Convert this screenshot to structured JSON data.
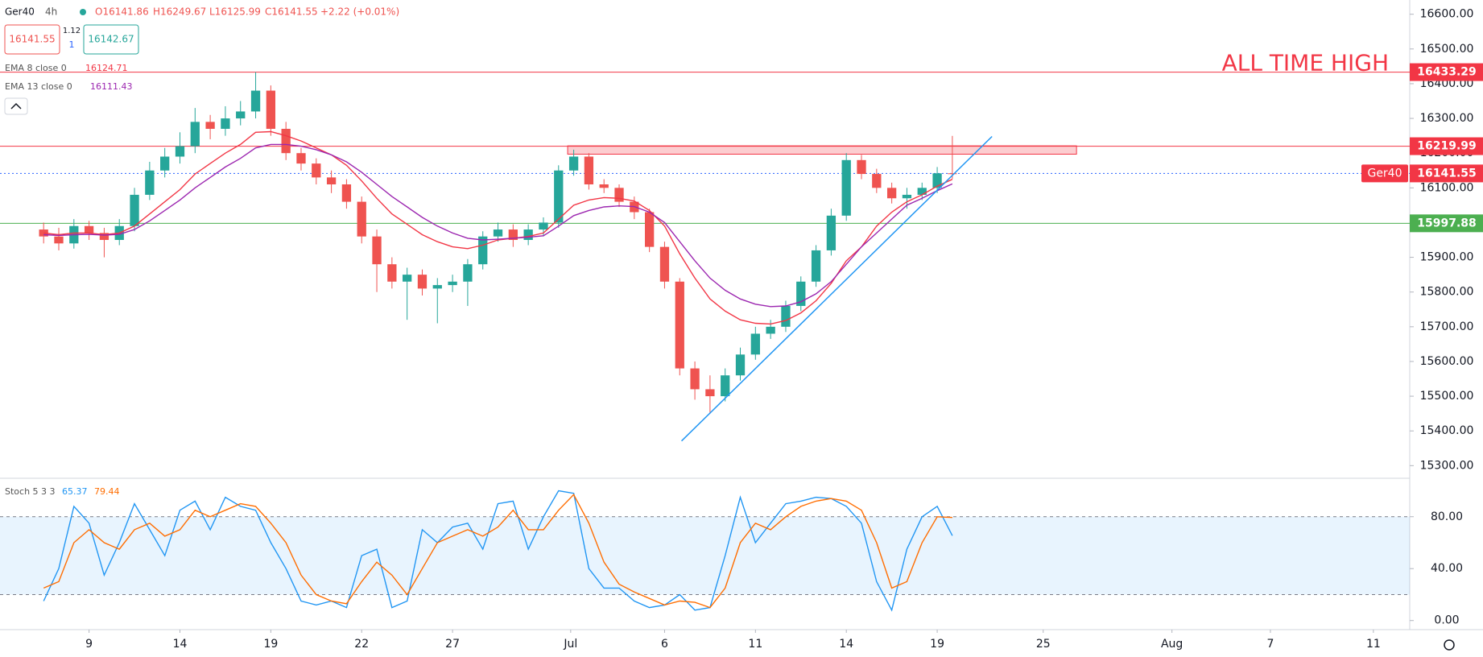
{
  "header": {
    "symbol": "Ger40",
    "interval": "4h",
    "open": "O16141.86",
    "high": "H16249.67",
    "low": "L16125.99",
    "close": "C16141.55",
    "change": "+2.22 (+0.01%)",
    "sell": "16141.55",
    "spread": "1.12",
    "qty": "1",
    "buy": "16142.67"
  },
  "chart_data": {
    "type": "candlestick",
    "x": [
      -0.5,
      0,
      0.5,
      1,
      1.5,
      2,
      2.5,
      3,
      3.5,
      4,
      4.5,
      5,
      5.5,
      6,
      6.5,
      7,
      7.5,
      8,
      8.5,
      9,
      9.5,
      10,
      10.5,
      11,
      11.5,
      12,
      12.5,
      13,
      13.5,
      14,
      14.5,
      15,
      15.5,
      16,
      16.5,
      17,
      17.5,
      18,
      18.5,
      19,
      19.5,
      20,
      20.5,
      21,
      21.5,
      22,
      22.5,
      23,
      23.5,
      24,
      24.5,
      25,
      25.5,
      26,
      26.5,
      27,
      27.5,
      28,
      28.5,
      29,
      29.5
    ],
    "open": [
      15980,
      15960,
      15940,
      15990,
      15970,
      15950,
      15990,
      16080,
      16150,
      16190,
      16220,
      16290,
      16270,
      16300,
      16320,
      16380,
      16270,
      16200,
      16170,
      16130,
      16110,
      16060,
      15960,
      15880,
      15830,
      15850,
      15810,
      15820,
      15830,
      15880,
      15960,
      15980,
      15950,
      15980,
      16000,
      16150,
      16190,
      16110,
      16100,
      16060,
      16030,
      15930,
      15830,
      15580,
      15520,
      15500,
      15560,
      15620,
      15680,
      15700,
      15760,
      15830,
      15920,
      16020,
      16180,
      16140,
      16100,
      16070,
      16080,
      16100,
      16141.86
    ],
    "high": [
      16000,
      15985,
      16010,
      16005,
      15985,
      16010,
      16100,
      16175,
      16215,
      16260,
      16330,
      16310,
      16335,
      16350,
      16433.29,
      16395,
      16290,
      16215,
      16185,
      16150,
      16125,
      16075,
      15980,
      15900,
      15870,
      15865,
      15840,
      15850,
      15895,
      15975,
      16000,
      15995,
      15995,
      16015,
      16165,
      16210,
      16200,
      16125,
      16110,
      16075,
      16040,
      15945,
      15840,
      15600,
      15560,
      15580,
      15640,
      15700,
      15720,
      15775,
      15845,
      15935,
      16040,
      16200,
      16195,
      16155,
      16115,
      16100,
      16115,
      16160,
      16249.67
    ],
    "low": [
      15940,
      15920,
      15925,
      15950,
      15900,
      15935,
      15975,
      16065,
      16130,
      16170,
      16200,
      16240,
      16250,
      16280,
      16300,
      16250,
      16180,
      16150,
      16110,
      16085,
      16040,
      15940,
      15800,
      15810,
      15720,
      15790,
      15710,
      15800,
      15760,
      15865,
      15945,
      15930,
      15935,
      15960,
      15985,
      16135,
      16095,
      16085,
      16045,
      16010,
      15915,
      15810,
      15560,
      15490,
      15450,
      15485,
      15545,
      15605,
      15665,
      15685,
      15745,
      15815,
      15905,
      16005,
      16125,
      16085,
      16055,
      16040,
      16065,
      16085,
      16125.99
    ],
    "close": [
      15960,
      15940,
      15990,
      15970,
      15950,
      15990,
      16080,
      16150,
      16190,
      16220,
      16290,
      16270,
      16300,
      16320,
      16380,
      16270,
      16200,
      16170,
      16130,
      16110,
      16060,
      15960,
      15880,
      15830,
      15850,
      15810,
      15820,
      15830,
      15880,
      15960,
      15980,
      15950,
      15980,
      16000,
      16150,
      16190,
      16110,
      16100,
      16060,
      16030,
      15930,
      15830,
      15580,
      15520,
      15500,
      15560,
      15620,
      15680,
      15700,
      15760,
      15830,
      15920,
      16020,
      16180,
      16140,
      16100,
      16070,
      16080,
      16100,
      16141.86,
      16141.55
    ],
    "up_color": "#26a69a",
    "down_color": "#ef5350",
    "series": [
      {
        "name": "EMA 8 close 0",
        "value_label": "16124.71",
        "color": "#f23645",
        "values": [
          15970,
          15965,
          15970,
          15970,
          15965,
          15970,
          15990,
          16025,
          16060,
          16095,
          16140,
          16170,
          16200,
          16225,
          16260,
          16262,
          16250,
          16235,
          16215,
          16195,
          16165,
          16120,
          16070,
          16025,
          15995,
          15965,
          15945,
          15930,
          15925,
          15935,
          15950,
          15955,
          15960,
          15970,
          16010,
          16050,
          16065,
          16072,
          16070,
          16062,
          16035,
          15990,
          15910,
          15840,
          15780,
          15745,
          15720,
          15710,
          15708,
          15718,
          15740,
          15775,
          15825,
          15890,
          15930,
          15990,
          16030,
          16060,
          16080,
          16105,
          16124.71
        ]
      },
      {
        "name": "EMA 13 close 0",
        "value_label": "16111.43",
        "color": "#9c27b0",
        "values": [
          15965,
          15963,
          15965,
          15966,
          15964,
          15966,
          15980,
          16005,
          16035,
          16065,
          16100,
          16130,
          16160,
          16185,
          16215,
          16225,
          16225,
          16220,
          16210,
          16195,
          16175,
          16145,
          16110,
          16075,
          16045,
          16015,
          15990,
          15970,
          15955,
          15950,
          15952,
          15955,
          15958,
          15962,
          15990,
          16020,
          16035,
          16045,
          16048,
          16046,
          16030,
          16000,
          15945,
          15890,
          15840,
          15805,
          15780,
          15765,
          15758,
          15760,
          15772,
          15795,
          15830,
          15880,
          15930,
          15970,
          16010,
          16050,
          16070,
          16092,
          16111.43
        ]
      }
    ],
    "xlim": [
      -1.94,
      44.6
    ],
    "xticks": [
      {
        "value": 1,
        "label": "9"
      },
      {
        "value": 4,
        "label": "14"
      },
      {
        "value": 7,
        "label": "19"
      },
      {
        "value": 10,
        "label": "22"
      },
      {
        "value": 13,
        "label": "27"
      },
      {
        "value": 16.9,
        "label": "Jul"
      },
      {
        "value": 20,
        "label": "6"
      },
      {
        "value": 23,
        "label": "11"
      },
      {
        "value": 26,
        "label": "14"
      },
      {
        "value": 29,
        "label": "19"
      },
      {
        "value": 32.5,
        "label": "25"
      },
      {
        "value": 36.75,
        "label": "Aug"
      },
      {
        "value": 40,
        "label": "7"
      },
      {
        "value": 43.4,
        "label": "11"
      }
    ],
    "ylim": [
      15266,
      16641
    ],
    "yticks": [
      {
        "value": 15300,
        "label": "15300.00"
      },
      {
        "value": 15400,
        "label": "15400.00"
      },
      {
        "value": 15500,
        "label": "15500.00"
      },
      {
        "value": 15600,
        "label": "15600.00"
      },
      {
        "value": 15700,
        "label": "15700.00"
      },
      {
        "value": 15800,
        "label": "15800.00"
      },
      {
        "value": 15900,
        "label": "15900.00"
      },
      {
        "value": 16000,
        "label": "16000.00"
      },
      {
        "value": 16100,
        "label": "16100.00"
      },
      {
        "value": 16200,
        "label": "16200.00"
      },
      {
        "value": 16300,
        "label": "16300.00"
      },
      {
        "value": 16400,
        "label": "16400.00"
      },
      {
        "value": 16500,
        "label": "16500.00"
      },
      {
        "value": 16600,
        "label": "16600.00"
      }
    ],
    "levels": [
      {
        "value": 16433.29,
        "label": "16433.29",
        "color": "#f23645",
        "note": "ALL TIME HIGH"
      },
      {
        "value": 16219.99,
        "label": "16219.99",
        "color": "#f23645"
      },
      {
        "value": 16141.55,
        "label": "16141.55",
        "color": "#f23645",
        "line_color": "#2962ff",
        "style": "dotted",
        "tag": "Ger40"
      },
      {
        "value": 15997.88,
        "label": "15997.88",
        "color": "#4caf50"
      }
    ],
    "zone": {
      "x": [
        16.8,
        33.6
      ],
      "y": [
        16197,
        16221
      ],
      "color": "#f23645"
    },
    "trendline": {
      "x": [
        20.56,
        30.81
      ],
      "y": [
        15371,
        16248
      ],
      "color": "#2196f3"
    },
    "indicator": {
      "type": "line",
      "title": "Stoch 5 3 3",
      "ylim": [
        -7,
        109
      ],
      "yticks": [
        {
          "value": 0,
          "label": "0.00"
        },
        {
          "value": 40,
          "label": "40.00"
        },
        {
          "value": 80,
          "label": "80.00"
        }
      ],
      "bands": [
        20,
        80
      ],
      "series": [
        {
          "value_label": "65.37",
          "color": "#2196f3",
          "values": [
            15,
            40,
            88,
            75,
            35,
            60,
            90,
            70,
            50,
            85,
            92,
            70,
            95,
            88,
            85,
            60,
            40,
            15,
            12,
            15,
            10,
            50,
            55,
            10,
            15,
            70,
            60,
            72,
            75,
            55,
            90,
            92,
            55,
            80,
            100,
            98,
            40,
            25,
            25,
            15,
            10,
            12,
            20,
            8,
            10,
            50,
            95,
            60,
            75,
            90,
            92,
            95,
            94,
            88,
            75,
            30,
            8,
            55,
            80,
            88,
            65.37
          ]
        },
        {
          "value_label": "79.44",
          "color": "#ff6d00",
          "values": [
            25,
            30,
            60,
            70,
            60,
            55,
            70,
            75,
            65,
            70,
            85,
            80,
            85,
            90,
            88,
            75,
            60,
            35,
            20,
            15,
            13,
            30,
            45,
            35,
            20,
            40,
            60,
            65,
            70,
            65,
            72,
            85,
            70,
            70,
            85,
            97,
            75,
            45,
            28,
            22,
            17,
            12,
            15,
            14,
            10,
            25,
            60,
            75,
            70,
            80,
            88,
            92,
            94,
            92,
            85,
            60,
            25,
            30,
            60,
            80,
            79.44
          ]
        }
      ]
    }
  }
}
